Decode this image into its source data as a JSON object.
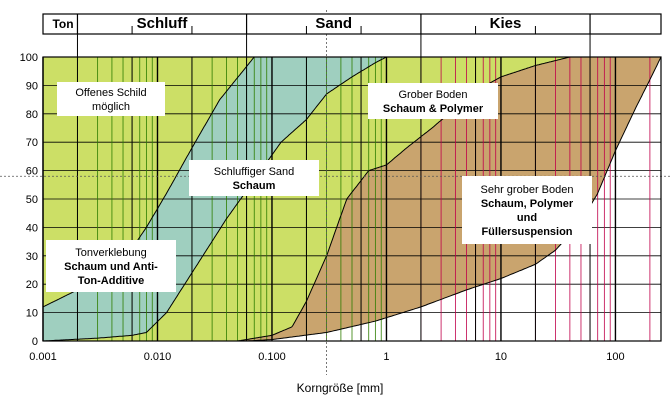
{
  "chart_data": {
    "type": "area",
    "xlabel": "Korngröße [mm]",
    "ylabel": "",
    "xscale": "log",
    "xlim": [
      0.001,
      250
    ],
    "ylim": [
      0,
      100
    ],
    "x_tick_labels": [
      {
        "value": 0.001,
        "label": "0.001"
      },
      {
        "value": 0.01,
        "label": "0.010"
      },
      {
        "value": 0.1,
        "label": "0.100"
      },
      {
        "value": 1,
        "label": "1"
      },
      {
        "value": 10,
        "label": "10"
      },
      {
        "value": 100,
        "label": "100"
      }
    ],
    "y_ticks": [
      0,
      10,
      20,
      30,
      40,
      50,
      60,
      70,
      80,
      90,
      100
    ],
    "soil_classes": [
      {
        "label": "Ton",
        "from": 0.001,
        "to": 0.002
      },
      {
        "label": "Schluff",
        "from": 0.002,
        "to": 0.06
      },
      {
        "label": "Sand",
        "from": 0.06,
        "to": 2
      },
      {
        "label": "Kies",
        "from": 2,
        "to": 60
      }
    ],
    "class_dividers": [
      0.002,
      0.006,
      0.02,
      0.06,
      0.2,
      0.6,
      2,
      6,
      20,
      60
    ],
    "curves": [
      {
        "id": "A",
        "points": [
          [
            0.001,
            12
          ],
          [
            0.002,
            18
          ],
          [
            0.005,
            28
          ],
          [
            0.008,
            40
          ],
          [
            0.012,
            52
          ],
          [
            0.02,
            68
          ],
          [
            0.035,
            85
          ],
          [
            0.07,
            100
          ]
        ]
      },
      {
        "id": "B",
        "points": [
          [
            0.001,
            0
          ],
          [
            0.003,
            1
          ],
          [
            0.006,
            2
          ],
          [
            0.008,
            3
          ],
          [
            0.012,
            10
          ],
          [
            0.02,
            24
          ],
          [
            0.04,
            43
          ],
          [
            0.08,
            60
          ],
          [
            0.12,
            70
          ],
          [
            0.2,
            78
          ],
          [
            0.3,
            87
          ],
          [
            0.5,
            93
          ],
          [
            0.8,
            98
          ],
          [
            1,
            100
          ]
        ]
      },
      {
        "id": "C",
        "points": [
          [
            0.05,
            0
          ],
          [
            0.1,
            2
          ],
          [
            0.15,
            5
          ],
          [
            0.2,
            14
          ],
          [
            0.3,
            30
          ],
          [
            0.45,
            50
          ],
          [
            0.7,
            60
          ],
          [
            1,
            62
          ],
          [
            1.5,
            68
          ],
          [
            2.5,
            75
          ],
          [
            4,
            82
          ],
          [
            6,
            88
          ],
          [
            10,
            93
          ],
          [
            20,
            97
          ],
          [
            40,
            100
          ]
        ]
      },
      {
        "id": "D",
        "points": [
          [
            0.06,
            0
          ],
          [
            0.1,
            0.5
          ],
          [
            0.3,
            3
          ],
          [
            0.8,
            7
          ],
          [
            2,
            12
          ],
          [
            5,
            18
          ],
          [
            10,
            22
          ],
          [
            20,
            27
          ],
          [
            30,
            32
          ],
          [
            50,
            42
          ],
          [
            70,
            52
          ],
          [
            100,
            67
          ],
          [
            150,
            82
          ],
          [
            200,
            92
          ],
          [
            250,
            100
          ]
        ]
      }
    ],
    "regions": [
      {
        "id": "R1",
        "between": [
          null,
          "A"
        ],
        "color": "#ccdf66"
      },
      {
        "id": "R2",
        "between": [
          "A",
          "B"
        ],
        "color": "#9fcfbf"
      },
      {
        "id": "R3",
        "between": [
          "B",
          "C"
        ],
        "color": "#ccdf66"
      },
      {
        "id": "R4",
        "between": [
          "C",
          "D"
        ],
        "color": "#c9a46e"
      }
    ],
    "annotations": [
      {
        "lines": [
          "Offenes Schild",
          "möglich"
        ],
        "bold": [
          false,
          false
        ]
      },
      {
        "lines": [
          "Schluffiger Sand",
          "Schaum"
        ],
        "bold": [
          false,
          true
        ]
      },
      {
        "lines": [
          "Tonverklebung",
          "Schaum und Anti-",
          "Ton-Additive"
        ],
        "bold": [
          false,
          true,
          true
        ]
      },
      {
        "lines": [
          "Grober Boden",
          "Schaum & Polymer"
        ],
        "bold": [
          false,
          true
        ]
      },
      {
        "lines": [
          "Sehr grober Boden",
          "Schaum, Polymer",
          "und",
          "Füllersuspension"
        ],
        "bold": [
          false,
          true,
          true,
          true
        ]
      }
    ],
    "colors": {
      "grid_green": "#2e7d00",
      "grid_red": "#c0004a",
      "curve": "#000000",
      "reference": "#555555"
    }
  }
}
